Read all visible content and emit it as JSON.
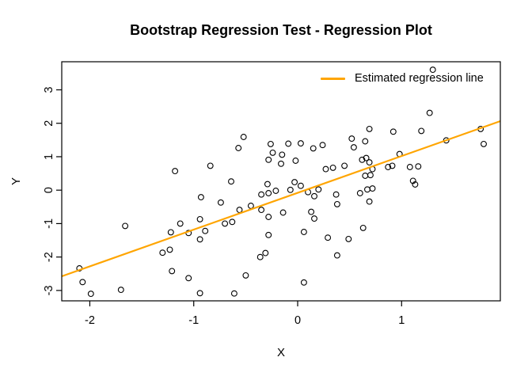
{
  "figure": {
    "background_color": "#FFFFFF",
    "text_color": "#000000"
  },
  "chart_data": {
    "type": "scatter",
    "title": "Bootstrap Regression Test - Regression Plot",
    "xlabel": "X",
    "ylabel": "Y",
    "xlim": [
      -2.27,
      1.95
    ],
    "ylim": [
      -3.31,
      3.84
    ],
    "x_ticks": [
      -2,
      -1,
      0,
      1
    ],
    "y_ticks": [
      -3,
      -2,
      -1,
      0,
      1,
      2,
      3
    ],
    "grid": false,
    "marker": "open-circle",
    "marker_color": "#000000",
    "points": [
      [
        -0.52,
        1.59
      ],
      [
        -0.57,
        1.26
      ],
      [
        -0.26,
        1.38
      ],
      [
        -0.24,
        1.12
      ],
      [
        -0.28,
        0.91
      ],
      [
        -0.15,
        1.06
      ],
      [
        -0.16,
        0.79
      ],
      [
        -1.18,
        0.57
      ],
      [
        -0.84,
        0.73
      ],
      [
        -0.64,
        0.26
      ],
      [
        1.3,
        3.6
      ],
      [
        1.27,
        2.31
      ],
      [
        0.69,
        1.83
      ],
      [
        0.92,
        1.75
      ],
      [
        1.19,
        1.77
      ],
      [
        1.76,
        1.83
      ],
      [
        1.43,
        1.49
      ],
      [
        1.79,
        1.38
      ],
      [
        -0.09,
        1.39
      ],
      [
        0.03,
        1.4
      ],
      [
        0.15,
        1.25
      ],
      [
        0.24,
        1.35
      ],
      [
        0.52,
        1.54
      ],
      [
        0.54,
        1.28
      ],
      [
        0.65,
        1.46
      ],
      [
        -0.02,
        0.88
      ],
      [
        0.62,
        0.91
      ],
      [
        0.66,
        0.96
      ],
      [
        0.69,
        0.83
      ],
      [
        0.98,
        1.08
      ],
      [
        0.27,
        0.63
      ],
      [
        0.34,
        0.67
      ],
      [
        0.45,
        0.73
      ],
      [
        0.72,
        0.63
      ],
      [
        0.87,
        0.69
      ],
      [
        0.91,
        0.73
      ],
      [
        1.08,
        0.69
      ],
      [
        1.16,
        0.71
      ],
      [
        0.65,
        0.43
      ],
      [
        0.7,
        0.45
      ],
      [
        -0.29,
        0.18
      ],
      [
        -0.07,
        0.01
      ],
      [
        -0.93,
        -0.21
      ],
      [
        -0.35,
        -0.13
      ],
      [
        -0.28,
        -0.09
      ],
      [
        -0.21,
        -0.02
      ],
      [
        -0.74,
        -0.37
      ],
      [
        -0.56,
        -0.59
      ],
      [
        -0.45,
        -0.47
      ],
      [
        -0.35,
        -0.59
      ],
      [
        -0.28,
        -0.8
      ],
      [
        -0.14,
        -0.67
      ],
      [
        -1.66,
        -1.07
      ],
      [
        -1.13,
        -1.0
      ],
      [
        -1.22,
        -1.26
      ],
      [
        -1.05,
        -1.28
      ],
      [
        -0.94,
        -0.87
      ],
      [
        -0.89,
        -1.22
      ],
      [
        -0.7,
        -1.0
      ],
      [
        -0.63,
        -0.95
      ],
      [
        -0.94,
        -1.47
      ],
      [
        -1.3,
        -1.87
      ],
      [
        -1.23,
        -1.78
      ],
      [
        -2.1,
        -2.34
      ],
      [
        -2.07,
        -2.75
      ],
      [
        -1.99,
        -3.1
      ],
      [
        -1.7,
        -2.98
      ],
      [
        -1.21,
        -2.42
      ],
      [
        -1.05,
        -2.63
      ],
      [
        -0.94,
        -3.08
      ],
      [
        -0.5,
        -2.55
      ],
      [
        -0.61,
        -3.09
      ],
      [
        -0.36,
        -2.0
      ],
      [
        -0.31,
        -1.88
      ],
      [
        -0.28,
        -1.34
      ],
      [
        -0.03,
        0.24
      ],
      [
        0.03,
        0.13
      ],
      [
        0.1,
        -0.06
      ],
      [
        0.16,
        -0.18
      ],
      [
        0.2,
        0.02
      ],
      [
        0.37,
        -0.13
      ],
      [
        0.38,
        -0.42
      ],
      [
        0.6,
        -0.09
      ],
      [
        0.67,
        0.02
      ],
      [
        0.72,
        0.05
      ],
      [
        0.69,
        -0.34
      ],
      [
        1.11,
        0.28
      ],
      [
        1.13,
        0.17
      ],
      [
        0.13,
        -0.65
      ],
      [
        0.16,
        -0.85
      ],
      [
        0.06,
        -1.25
      ],
      [
        0.29,
        -1.42
      ],
      [
        0.49,
        -1.46
      ],
      [
        0.63,
        -1.13
      ],
      [
        0.38,
        -1.95
      ],
      [
        0.06,
        -2.76
      ]
    ],
    "regression_line": {
      "slope": 1.1,
      "intercept": -0.08,
      "color": "#FFA500"
    },
    "legend": {
      "position": "topright",
      "border": false,
      "entries": [
        {
          "label": "Estimated regression line",
          "color": "#FFA500",
          "type": "line"
        }
      ]
    }
  }
}
